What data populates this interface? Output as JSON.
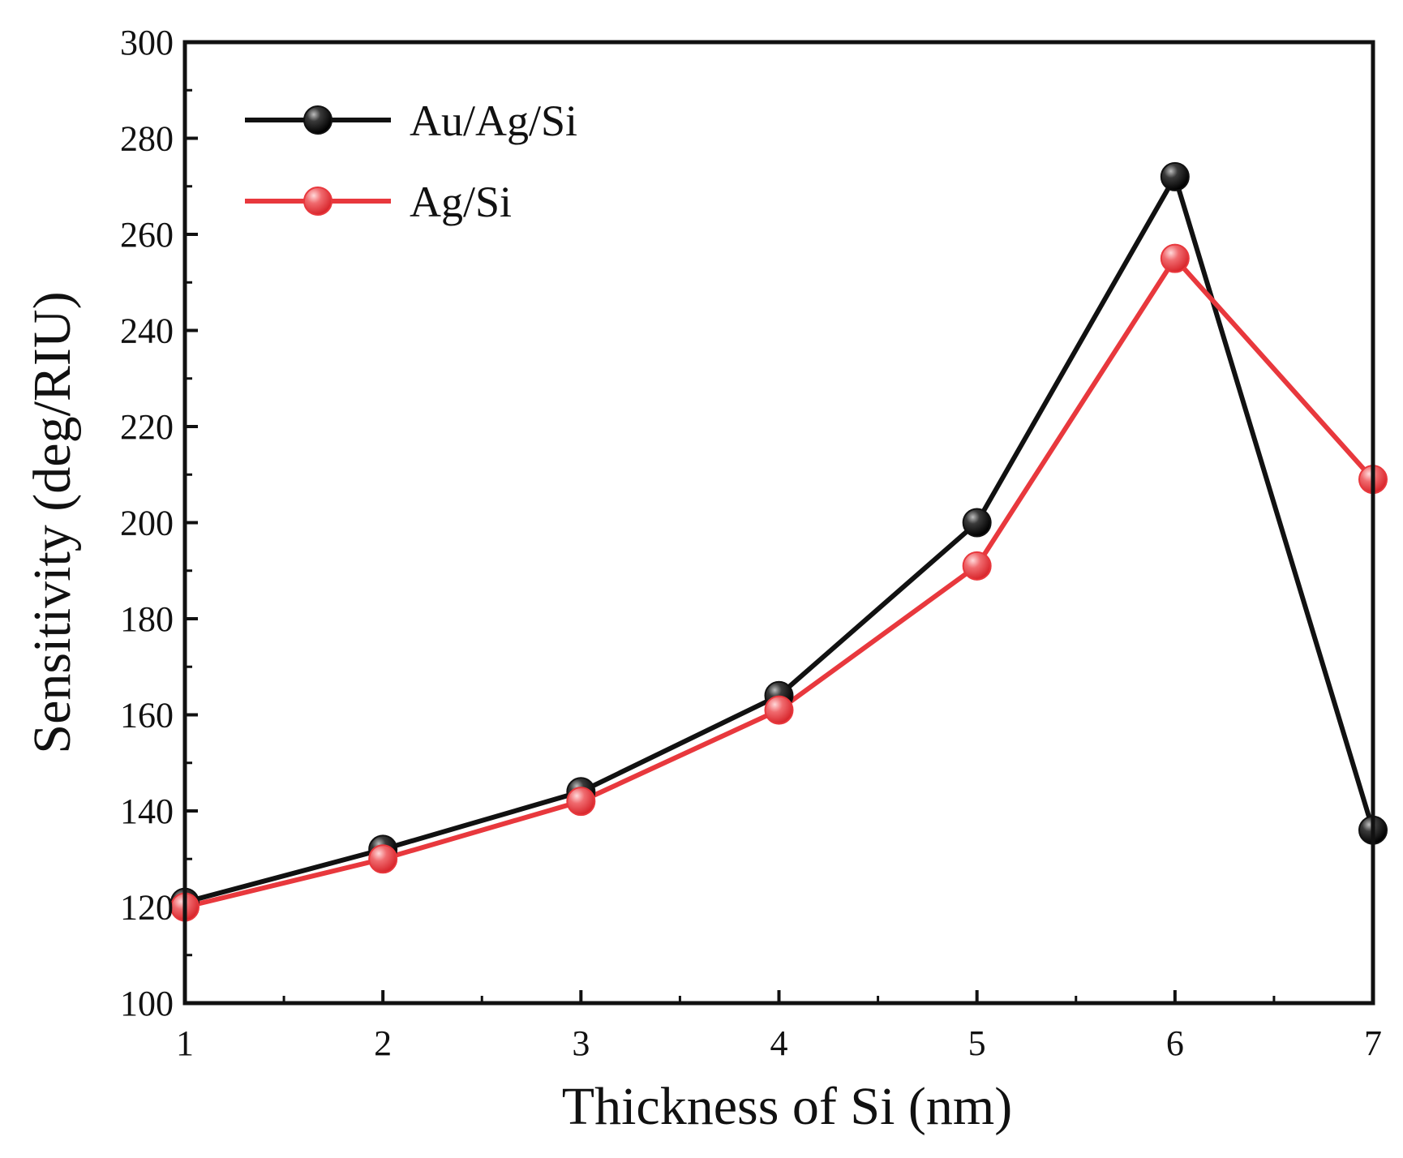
{
  "chart_data": {
    "type": "line",
    "title": "",
    "xlabel": "Thickness of Si (nm)",
    "ylabel": "Sensitivity (deg/RIU)",
    "x": [
      1,
      2,
      3,
      4,
      5,
      6,
      7
    ],
    "xlim": [
      1,
      7
    ],
    "ylim": [
      100,
      300
    ],
    "xticks": [
      "1",
      "2",
      "3",
      "4",
      "5",
      "6",
      "7"
    ],
    "yticks": [
      "100",
      "120",
      "140",
      "160",
      "180",
      "200",
      "220",
      "240",
      "260",
      "280",
      "300"
    ],
    "grid": false,
    "legend_position": "top-left",
    "series": [
      {
        "name": "Au/Ag/Si",
        "color": "#111111",
        "marker": "circle",
        "values": [
          121,
          132,
          144,
          164,
          200,
          272,
          136
        ]
      },
      {
        "name": "Ag/Si",
        "color": "#e8383d",
        "marker": "circle",
        "values": [
          120,
          130,
          142,
          161,
          191,
          255,
          209
        ]
      }
    ]
  }
}
